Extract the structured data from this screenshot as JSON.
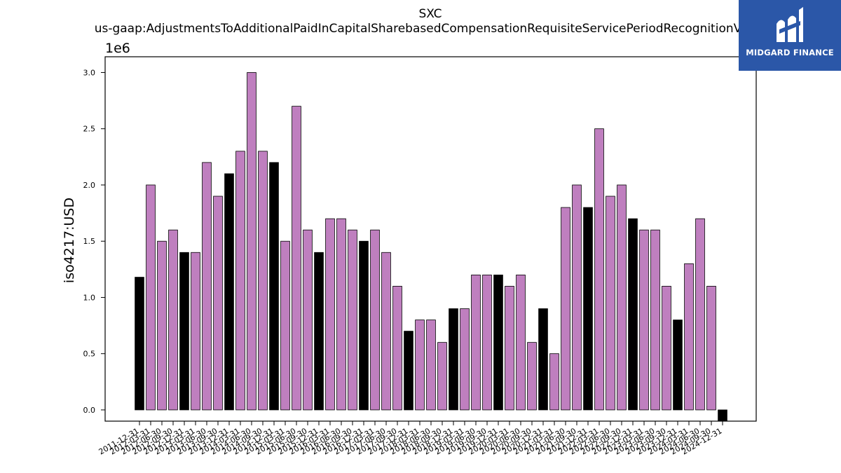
{
  "chart_data": {
    "type": "bar",
    "title": "SXC",
    "subtitle": "us-gaap:AdjustmentsToAdditionalPaidInCapitalSharebasedCompensationRequisiteServicePeriodRecognitionValue",
    "ylabel": "iso4217:USD",
    "y_offset_label": "1e6",
    "y_ticks": [
      "0.0",
      "0.5",
      "1.0",
      "1.5",
      "2.0",
      "2.5",
      "3.0"
    ],
    "ylim": [
      -0.1,
      3.14
    ],
    "grid": false,
    "categories": [
      "2011-12-31",
      "2012-03-31",
      "2012-06-30",
      "2012-09-30",
      "2012-12-31",
      "2013-03-31",
      "2013-06-30",
      "2013-09-30",
      "2013-12-31",
      "2014-03-31",
      "2014-06-30",
      "2014-09-30",
      "2014-12-31",
      "2015-03-31",
      "2015-06-30",
      "2015-09-30",
      "2015-12-31",
      "2016-03-31",
      "2016-06-30",
      "2016-09-30",
      "2016-12-31",
      "2017-03-31",
      "2017-06-30",
      "2017-09-30",
      "2017-12-31",
      "2018-03-31",
      "2018-06-30",
      "2018-09-30",
      "2018-12-31",
      "2019-03-31",
      "2019-06-30",
      "2019-09-30",
      "2019-12-31",
      "2020-03-31",
      "2020-06-30",
      "2020-09-30",
      "2020-12-31",
      "2021-03-31",
      "2021-06-30",
      "2021-09-30",
      "2021-12-31",
      "2022-03-31",
      "2022-06-30",
      "2022-09-30",
      "2022-12-31",
      "2023-03-31",
      "2023-06-30",
      "2023-09-30",
      "2023-12-31",
      "2024-03-31",
      "2024-06-30",
      "2024-09-30",
      "2024-12-31"
    ],
    "values": [
      1.18,
      2.0,
      1.5,
      1.6,
      1.4,
      1.4,
      2.2,
      1.9,
      2.1,
      2.3,
      3.0,
      2.3,
      2.2,
      1.5,
      2.7,
      1.6,
      1.4,
      1.7,
      1.7,
      1.6,
      1.5,
      1.6,
      1.4,
      1.1,
      0.7,
      0.8,
      0.8,
      0.6,
      0.9,
      0.9,
      1.2,
      1.2,
      1.2,
      1.1,
      1.2,
      0.6,
      0.9,
      0.5,
      1.8,
      2.0,
      1.8,
      2.5,
      1.9,
      2.0,
      1.7,
      1.6,
      1.6,
      1.1,
      0.8,
      1.3,
      1.7,
      1.1,
      -0.1
    ],
    "annual": [
      true,
      false,
      false,
      false,
      true,
      false,
      false,
      false,
      true,
      false,
      false,
      false,
      true,
      false,
      false,
      false,
      true,
      false,
      false,
      false,
      true,
      false,
      false,
      false,
      true,
      false,
      false,
      false,
      true,
      false,
      false,
      false,
      true,
      false,
      false,
      false,
      true,
      false,
      false,
      false,
      true,
      false,
      false,
      false,
      true,
      false,
      false,
      false,
      true,
      false,
      false,
      false,
      true
    ],
    "colors": {
      "quarter": "#bf7fbf",
      "annual": "#000000",
      "edge": "#000000"
    }
  },
  "logo": {
    "text": "MIDGARD FINANCE",
    "background": "#2b57a8"
  }
}
